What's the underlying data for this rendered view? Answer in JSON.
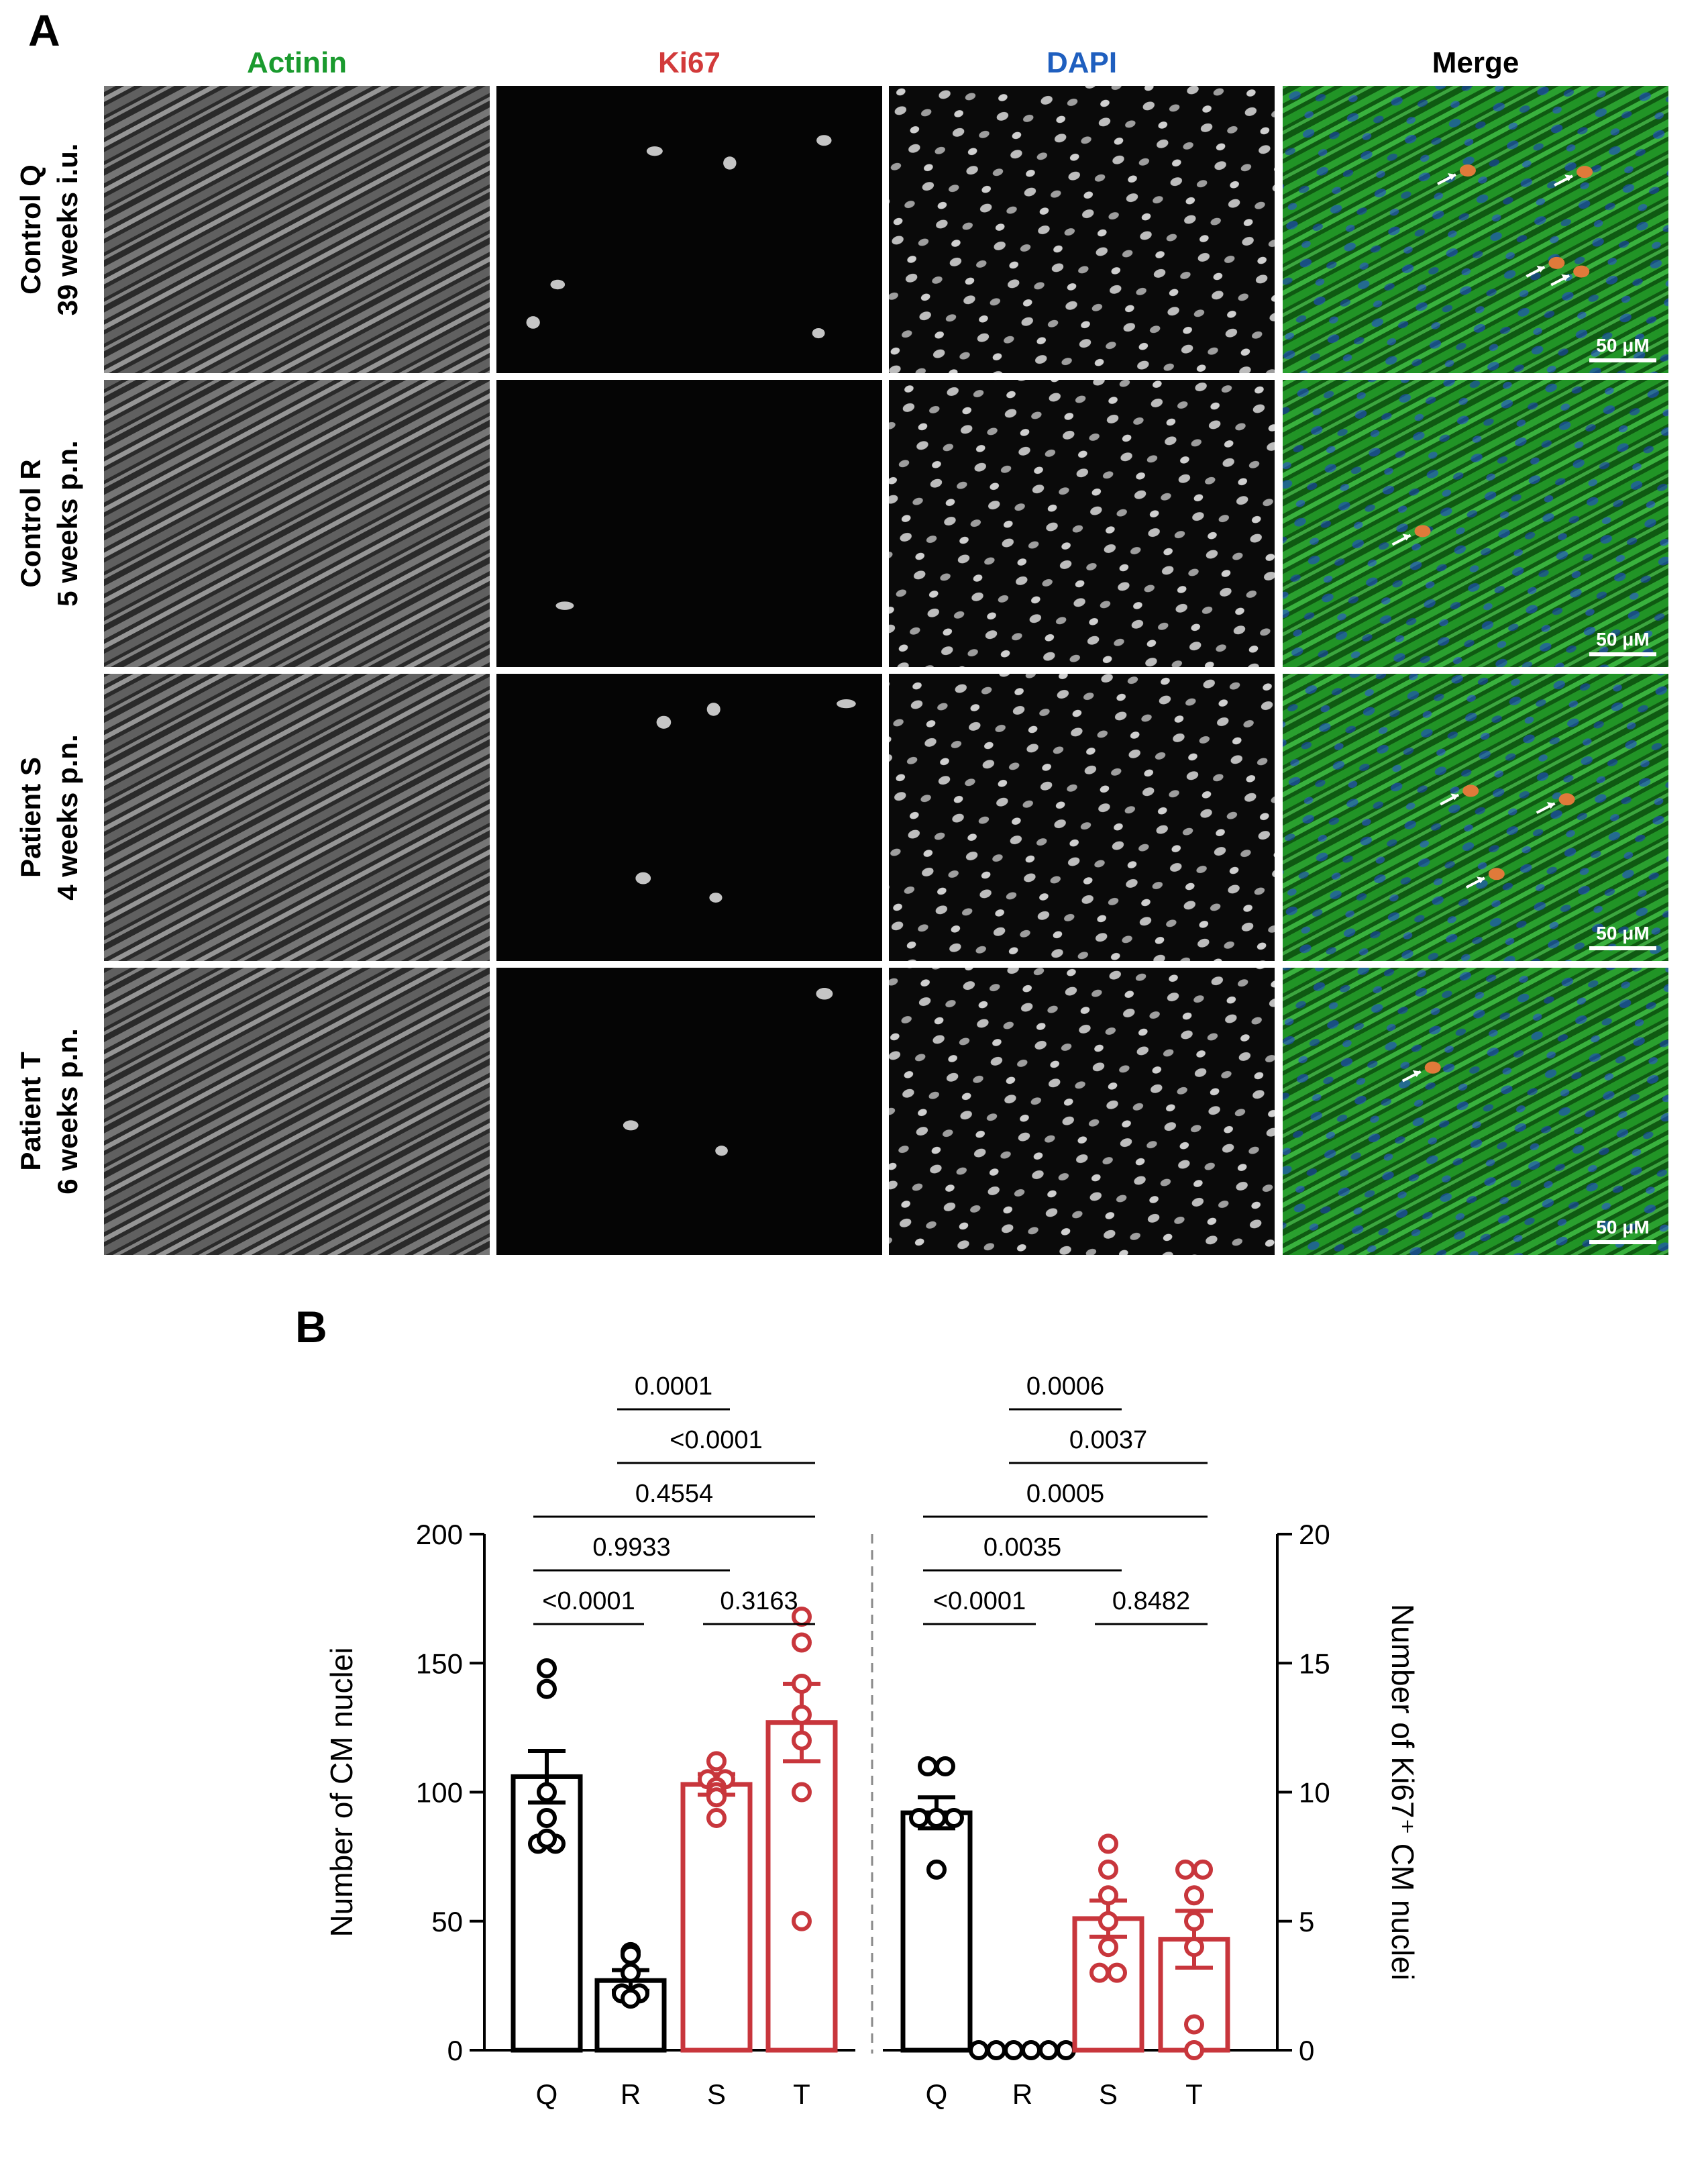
{
  "panel_a": {
    "letter": "A",
    "columns": [
      {
        "label": "Actinin",
        "color": "#1a9a2e"
      },
      {
        "label": "Ki67",
        "color": "#d23a3a"
      },
      {
        "label": "DAPI",
        "color": "#1f5fbf"
      },
      {
        "label": "Merge",
        "color": "#000000"
      }
    ],
    "rows": [
      {
        "line1": "Control Q",
        "line2": "39 weeks i.u.",
        "scale_bar": "50 μM"
      },
      {
        "line1": "Control R",
        "line2": "5 weeks p.n.",
        "scale_bar": "50 μM"
      },
      {
        "line1": "Patient S",
        "line2": "4 weeks p.n.",
        "scale_bar": "50 μM"
      },
      {
        "line1": "Patient T",
        "line2": "6 weeks p.n.",
        "scale_bar": "50 μM"
      }
    ],
    "image_description_colors": {
      "actinin_merge": "#25b52a",
      "nuclei_merge": "#1e44c8",
      "ki67_merge": "#e0703a"
    }
  },
  "panel_b": {
    "letter": "B",
    "chart_data": [
      {
        "type": "bar",
        "categories": [
          "Q",
          "R",
          "S",
          "T"
        ],
        "ylabel": "Number of CM nuclei",
        "ylim": [
          0,
          200
        ],
        "yticks": [
          0,
          50,
          100,
          150,
          200
        ],
        "bar_colors": [
          "#000000",
          "#000000",
          "#c8363c",
          "#c8363c"
        ],
        "means": [
          106,
          27,
          103,
          127
        ],
        "sem": [
          10,
          4,
          4,
          15
        ],
        "points": [
          [
            148,
            140,
            100,
            90,
            80,
            80,
            82
          ],
          [
            38,
            37,
            30,
            22,
            22,
            20
          ],
          [
            112,
            105,
            105,
            102,
            100,
            98,
            90
          ],
          [
            168,
            158,
            142,
            130,
            120,
            100,
            50
          ]
        ],
        "comparisons": [
          {
            "from": "Q",
            "to": "R",
            "p": "<0.0001"
          },
          {
            "from": "S",
            "to": "T",
            "p": "0.3163"
          },
          {
            "from": "Q",
            "to": "S",
            "p": "0.9933"
          },
          {
            "from": "Q",
            "to": "T",
            "p": "0.4554"
          },
          {
            "from": "R",
            "to": "T",
            "p": "<0.0001"
          },
          {
            "from": "R",
            "to": "S",
            "p": "0.0001"
          }
        ]
      },
      {
        "type": "bar",
        "categories": [
          "Q",
          "R",
          "S",
          "T"
        ],
        "ylabel": "Number of Ki67⁺ CM nuclei",
        "ylim": [
          0,
          20
        ],
        "yticks": [
          0,
          5,
          10,
          15,
          20
        ],
        "bar_colors": [
          "#000000",
          "#000000",
          "#c8363c",
          "#c8363c"
        ],
        "means": [
          9.2,
          0,
          5.1,
          4.3
        ],
        "sem": [
          0.6,
          0,
          0.7,
          1.1
        ],
        "points": [
          [
            11,
            11,
            9,
            9,
            9,
            7
          ],
          [
            0,
            0,
            0,
            0,
            0,
            0
          ],
          [
            8,
            7,
            6,
            5,
            4,
            3,
            3
          ],
          [
            7,
            7,
            6,
            5,
            4,
            1,
            0
          ]
        ],
        "comparisons": [
          {
            "from": "Q",
            "to": "R",
            "p": "<0.0001"
          },
          {
            "from": "S",
            "to": "T",
            "p": "0.8482"
          },
          {
            "from": "Q",
            "to": "S",
            "p": "0.0035"
          },
          {
            "from": "Q",
            "to": "T",
            "p": "0.0005"
          },
          {
            "from": "R",
            "to": "T",
            "p": "0.0037"
          },
          {
            "from": "R",
            "to": "S",
            "p": "0.0006"
          }
        ]
      }
    ]
  }
}
